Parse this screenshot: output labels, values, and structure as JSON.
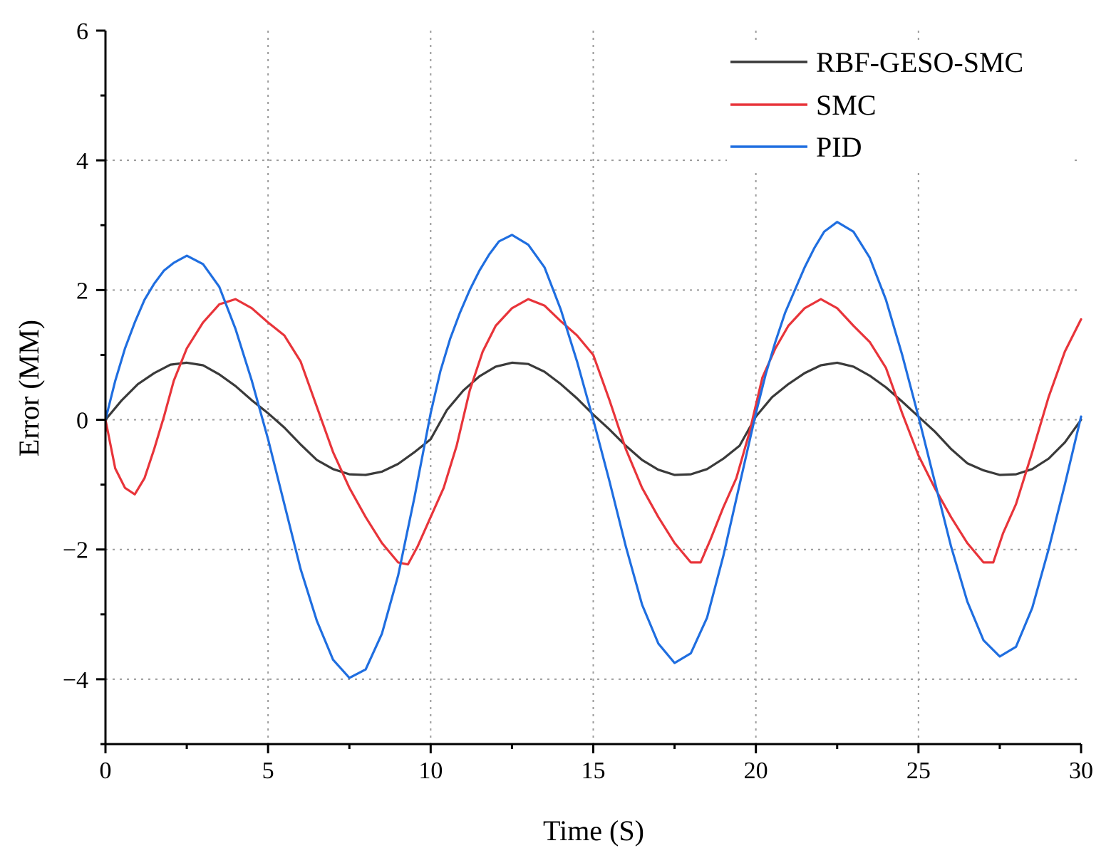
{
  "chart_data": {
    "type": "line",
    "title": "",
    "xlabel": "Time (S)",
    "ylabel": "Error (MM)",
    "xlim": [
      0,
      30
    ],
    "ylim": [
      -5,
      6
    ],
    "xticks": [
      0,
      5,
      10,
      15,
      20,
      25,
      30
    ],
    "yticks": [
      -4,
      -2,
      0,
      2,
      4,
      6
    ],
    "xtick_labels": [
      "0",
      "5",
      "10",
      "15",
      "20",
      "25",
      "30"
    ],
    "ytick_labels": [
      "−4",
      "−2",
      "0",
      "2",
      "4",
      "6"
    ],
    "grid": true,
    "legend_position": "top-right",
    "series": [
      {
        "name": "RBF-GESO-SMC",
        "color": "#3a3a3a",
        "x": [
          0,
          0.5,
          1,
          1.5,
          2,
          2.5,
          3,
          3.5,
          4,
          4.5,
          5,
          5.5,
          6,
          6.5,
          7,
          7.5,
          8,
          8.5,
          9,
          9.5,
          10,
          10.5,
          11,
          11.5,
          12,
          12.5,
          13,
          13.5,
          14,
          14.5,
          15,
          15.5,
          16,
          16.5,
          17,
          17.5,
          18,
          18.5,
          19,
          19.5,
          20,
          20.5,
          21,
          21.5,
          22,
          22.5,
          23,
          23.5,
          24,
          24.5,
          25,
          25.5,
          26,
          26.5,
          27,
          27.5,
          28,
          28.5,
          29,
          29.5,
          30
        ],
        "y": [
          0,
          0.3,
          0.55,
          0.72,
          0.85,
          0.88,
          0.84,
          0.7,
          0.52,
          0.3,
          0.1,
          -0.12,
          -0.38,
          -0.62,
          -0.76,
          -0.84,
          -0.85,
          -0.8,
          -0.68,
          -0.5,
          -0.3,
          0.15,
          0.45,
          0.67,
          0.82,
          0.88,
          0.86,
          0.74,
          0.55,
          0.33,
          0.08,
          -0.15,
          -0.4,
          -0.62,
          -0.77,
          -0.85,
          -0.84,
          -0.76,
          -0.6,
          -0.4,
          0.05,
          0.35,
          0.55,
          0.72,
          0.84,
          0.88,
          0.82,
          0.68,
          0.5,
          0.28,
          0.05,
          -0.18,
          -0.45,
          -0.67,
          -0.78,
          -0.85,
          -0.84,
          -0.76,
          -0.6,
          -0.35,
          0
        ]
      },
      {
        "name": "SMC",
        "color": "#e8343a",
        "x": [
          0,
          0.3,
          0.6,
          0.9,
          1.2,
          1.5,
          1.8,
          2.1,
          2.5,
          3,
          3.5,
          4,
          4.5,
          5,
          5.5,
          6,
          6.5,
          7,
          7.5,
          8,
          8.5,
          9,
          9.3,
          9.6,
          10,
          10.4,
          10.8,
          11.2,
          11.6,
          12,
          12.5,
          13,
          13.5,
          14,
          14.5,
          15,
          15.5,
          16,
          16.5,
          17,
          17.5,
          18,
          18.3,
          18.6,
          19,
          19.4,
          19.8,
          20.2,
          20.6,
          21,
          21.5,
          22,
          22.5,
          23,
          23.5,
          24,
          24.5,
          25,
          25.5,
          26,
          26.5,
          27,
          27.3,
          27.6,
          28,
          28.5,
          29,
          29.5,
          30
        ],
        "y": [
          0,
          -0.75,
          -1.05,
          -1.15,
          -0.9,
          -0.45,
          0.05,
          0.6,
          1.1,
          1.5,
          1.78,
          1.86,
          1.72,
          1.5,
          1.3,
          0.9,
          0.2,
          -0.5,
          -1.05,
          -1.5,
          -1.9,
          -2.2,
          -2.23,
          -1.95,
          -1.5,
          -1.05,
          -0.4,
          0.45,
          1.05,
          1.45,
          1.72,
          1.86,
          1.76,
          1.52,
          1.3,
          1.0,
          0.3,
          -0.45,
          -1.05,
          -1.5,
          -1.9,
          -2.2,
          -2.2,
          -1.85,
          -1.35,
          -0.9,
          -0.2,
          0.65,
          1.1,
          1.45,
          1.72,
          1.86,
          1.72,
          1.45,
          1.2,
          0.8,
          0.1,
          -0.55,
          -1.05,
          -1.5,
          -1.9,
          -2.2,
          -2.2,
          -1.75,
          -1.3,
          -0.5,
          0.35,
          1.05,
          1.55
        ]
      },
      {
        "name": "PID",
        "color": "#1f6ee0",
        "x": [
          0,
          0.3,
          0.6,
          0.9,
          1.2,
          1.5,
          1.8,
          2.1,
          2.5,
          3,
          3.5,
          4,
          4.5,
          5,
          5.5,
          6,
          6.5,
          7,
          7.5,
          8,
          8.5,
          9,
          9.5,
          10,
          10.3,
          10.6,
          10.9,
          11.2,
          11.5,
          11.8,
          12.1,
          12.5,
          13,
          13.5,
          14,
          14.5,
          15,
          15.5,
          16,
          16.5,
          17,
          17.5,
          18,
          18.5,
          19,
          19.5,
          20,
          20.3,
          20.6,
          20.9,
          21.2,
          21.5,
          21.8,
          22.1,
          22.5,
          23,
          23.5,
          24,
          24.5,
          25,
          25.5,
          26,
          26.5,
          27,
          27.5,
          28,
          28.5,
          29,
          29.5,
          30
        ],
        "y": [
          0,
          0.6,
          1.1,
          1.5,
          1.85,
          2.1,
          2.3,
          2.42,
          2.53,
          2.4,
          2.05,
          1.4,
          0.6,
          -0.3,
          -1.3,
          -2.3,
          -3.1,
          -3.7,
          -3.98,
          -3.85,
          -3.3,
          -2.4,
          -1.2,
          0.1,
          0.75,
          1.25,
          1.65,
          2.0,
          2.3,
          2.55,
          2.75,
          2.85,
          2.7,
          2.35,
          1.7,
          0.9,
          0.0,
          -0.95,
          -1.95,
          -2.85,
          -3.45,
          -3.75,
          -3.6,
          -3.05,
          -2.1,
          -1.0,
          0.1,
          0.7,
          1.2,
          1.65,
          2.0,
          2.35,
          2.65,
          2.9,
          3.05,
          2.9,
          2.5,
          1.85,
          1.0,
          0.05,
          -0.95,
          -1.95,
          -2.8,
          -3.4,
          -3.65,
          -3.5,
          -2.9,
          -2.0,
          -1.0,
          0.05
        ]
      }
    ]
  }
}
